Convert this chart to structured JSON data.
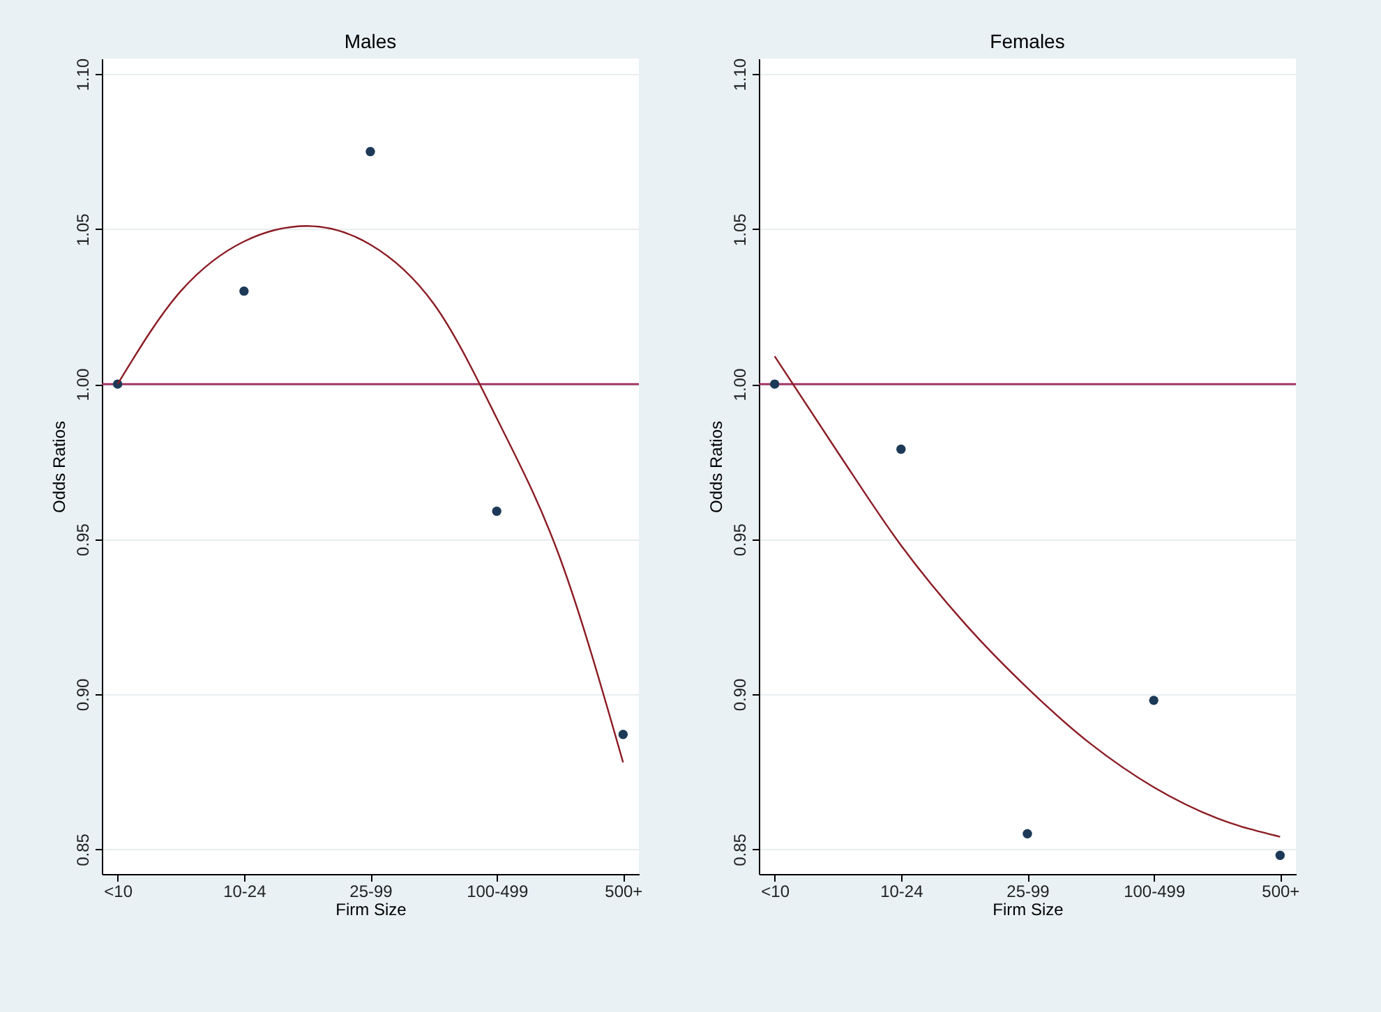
{
  "chart_data": [
    {
      "type": "scatter",
      "title": "Males",
      "xlabel": "Firm Size",
      "ylabel": "Odds Ratios",
      "categories": [
        "<10",
        null,
        "10-24",
        null,
        "25-99",
        null,
        "100-499",
        null,
        "500+"
      ],
      "ylim": [
        0.842,
        1.105
      ],
      "yticks": [
        {
          "value": 0.85,
          "label": "0.85"
        },
        {
          "value": 0.9,
          "label": "0.90"
        },
        {
          "value": 0.95,
          "label": "0.95"
        },
        {
          "value": 1.0,
          "label": "1.00"
        },
        {
          "value": 1.05,
          "label": "1.05"
        },
        {
          "value": 1.1,
          "label": "1.10"
        }
      ],
      "grid": "y",
      "series": [
        {
          "type": "scatter",
          "marker": "circle",
          "color": "#1c3a57",
          "values": [
            1.0,
            null,
            1.03,
            null,
            1.075,
            null,
            0.959,
            null,
            0.887
          ]
        },
        {
          "type": "line",
          "color": "#8b1c24",
          "line_style": "solid",
          "values": [
            1.0,
            1.03,
            1.046,
            1.051,
            1.045,
            1.026,
            0.989,
            0.944,
            0.878
          ]
        }
      ],
      "ref_lines": [
        {
          "axis": "y",
          "value": 1.0,
          "color": "#a0285a"
        }
      ]
    },
    {
      "type": "scatter",
      "title": "Females",
      "xlabel": "Firm Size",
      "ylabel": "Odds Ratios",
      "categories": [
        "<10",
        null,
        "10-24",
        null,
        "25-99",
        null,
        "100-499",
        null,
        "500+"
      ],
      "ylim": [
        0.842,
        1.105
      ],
      "yticks": [
        {
          "value": 0.85,
          "label": "0.85"
        },
        {
          "value": 0.9,
          "label": "0.90"
        },
        {
          "value": 0.95,
          "label": "0.95"
        },
        {
          "value": 1.0,
          "label": "1.00"
        },
        {
          "value": 1.05,
          "label": "1.05"
        },
        {
          "value": 1.1,
          "label": "1.10"
        }
      ],
      "grid": "y",
      "series": [
        {
          "type": "scatter",
          "marker": "circle",
          "color": "#1c3a57",
          "values": [
            1.0,
            null,
            0.979,
            null,
            0.855,
            null,
            0.898,
            null,
            0.848
          ]
        },
        {
          "type": "line",
          "color": "#8b1c24",
          "line_style": "solid",
          "values": [
            1.009,
            0.978,
            0.948,
            0.923,
            0.902,
            0.884,
            0.87,
            0.86,
            0.854
          ]
        }
      ],
      "ref_lines": [
        {
          "axis": "y",
          "value": 1.0,
          "color": "#a0285a"
        }
      ]
    }
  ]
}
